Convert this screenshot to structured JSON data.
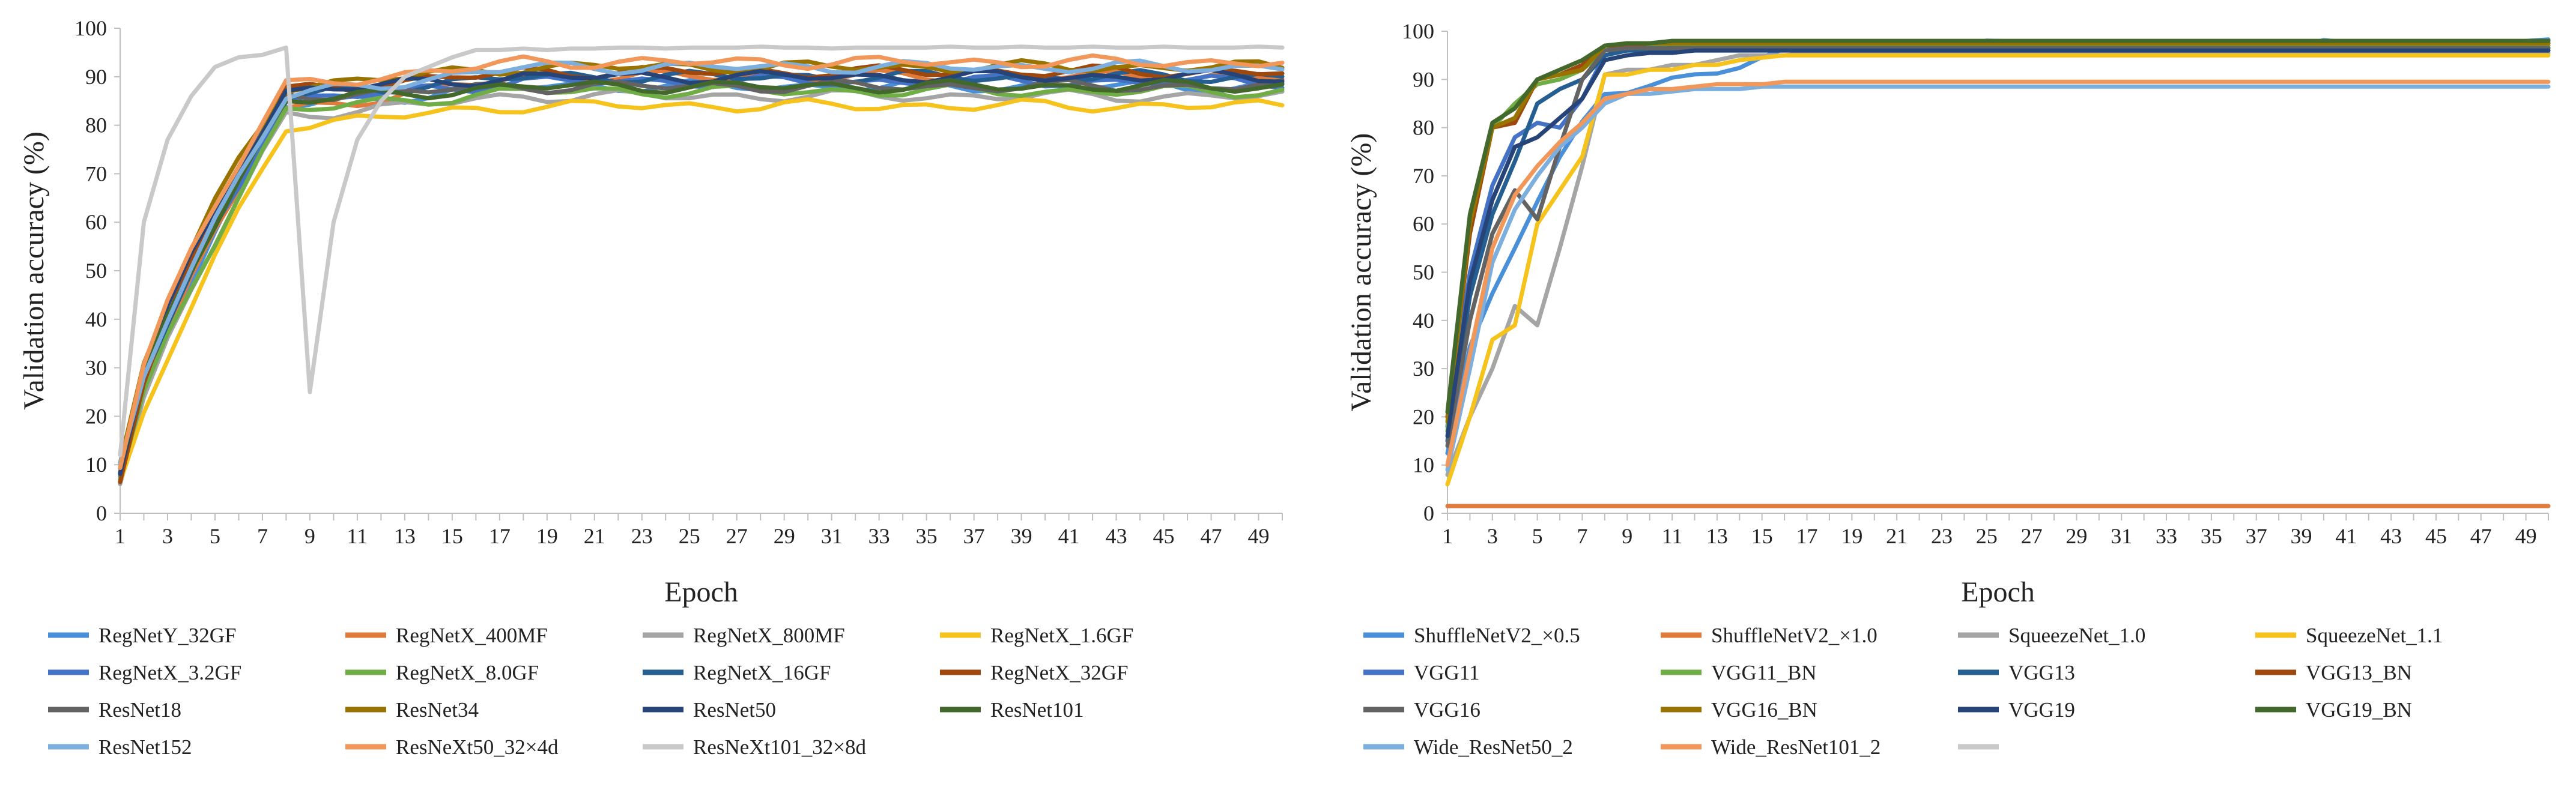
{
  "chart_data": [
    {
      "type": "line",
      "title": "",
      "xlabel": "Epoch",
      "ylabel": "Validation accuracy (%)",
      "ylim": [
        0,
        100
      ],
      "yticks": [
        0,
        10,
        20,
        30,
        40,
        50,
        60,
        70,
        80,
        90,
        100
      ],
      "xlim": [
        1,
        50
      ],
      "xtick_labels": [
        "1",
        "3",
        "5",
        "7",
        "9",
        "11",
        "13",
        "15",
        "17",
        "19",
        "21",
        "23",
        "25",
        "27",
        "29",
        "31",
        "33",
        "35",
        "37",
        "39",
        "41",
        "43",
        "45",
        "47",
        "49"
      ],
      "legend_position": "bottom",
      "series": [
        {
          "name": "RegNetY_32GF",
          "color": "#4a90d9",
          "start": 8,
          "mid": 84,
          "plateau": 88,
          "k": 1.35
        },
        {
          "name": "RegNetX_400MF",
          "color": "#e07b3c",
          "start": 7,
          "mid": 83,
          "plateau": 90,
          "k": 1.4
        },
        {
          "name": "RegNetX_800MF",
          "color": "#a5a5a5",
          "start": 7,
          "mid": 82,
          "plateau": 86,
          "k": 1.3
        },
        {
          "name": "RegNetX_1.6GF",
          "color": "#f6c21c",
          "start": 6,
          "mid": 80,
          "plateau": 84,
          "k": 1.2
        },
        {
          "name": "RegNetX_3.2GF",
          "color": "#4472c4",
          "start": 8,
          "mid": 85,
          "plateau": 89,
          "k": 1.35
        },
        {
          "name": "RegNetX_8.0GF",
          "color": "#70ad47",
          "start": 7,
          "mid": 83,
          "plateau": 87,
          "k": 1.3
        },
        {
          "name": "RegNetX_16GF",
          "color": "#255e91",
          "start": 8,
          "mid": 86,
          "plateau": 90,
          "k": 1.4
        },
        {
          "name": "RegNetX_32GF",
          "color": "#9e480e",
          "start": 7,
          "mid": 87,
          "plateau": 91,
          "k": 1.45
        },
        {
          "name": "ResNet18",
          "color": "#636363",
          "start": 9,
          "mid": 86,
          "plateau": 88,
          "k": 1.4
        },
        {
          "name": "ResNet34",
          "color": "#997300",
          "start": 10,
          "mid": 88,
          "plateau": 92,
          "k": 1.5
        },
        {
          "name": "ResNet50",
          "color": "#264478",
          "start": 9,
          "mid": 87,
          "plateau": 90,
          "k": 1.45
        },
        {
          "name": "ResNet101",
          "color": "#43682b",
          "start": 9,
          "mid": 85,
          "plateau": 88,
          "k": 1.4
        },
        {
          "name": "ResNet152",
          "color": "#7cafdd",
          "start": 9,
          "mid": 86,
          "plateau": 92,
          "k": 1.4
        },
        {
          "name": "ResNeXt50_32×4d",
          "color": "#f1975a",
          "start": 10,
          "mid": 88,
          "plateau": 93,
          "k": 1.5
        },
        {
          "name": "ResNeXt101_32×8d",
          "color": "#c9c9c9",
          "values": [
            12,
            60,
            77,
            86,
            92,
            94,
            94.5,
            96,
            25,
            60,
            77,
            85,
            90,
            92,
            94,
            95.5,
            95.5,
            95.8,
            95.5,
            95.8,
            95.8,
            96,
            96,
            95.8,
            96,
            96,
            96,
            96.2,
            96,
            96,
            95.8,
            96,
            96,
            96,
            96,
            96.2,
            96,
            96,
            96.2,
            96,
            96,
            96.2,
            96,
            96,
            96.2,
            96,
            96,
            96,
            96.2,
            96
          ]
        }
      ]
    },
    {
      "type": "line",
      "title": "",
      "xlabel": "Epoch",
      "ylabel": "Validation accuracy (%)",
      "ylim": [
        0,
        100
      ],
      "yticks": [
        0,
        10,
        20,
        30,
        40,
        50,
        60,
        70,
        80,
        90,
        100
      ],
      "xlim": [
        1,
        50
      ],
      "xtick_labels": [
        "1",
        "3",
        "5",
        "7",
        "9",
        "11",
        "13",
        "15",
        "17",
        "19",
        "21",
        "23",
        "25",
        "27",
        "29",
        "31",
        "33",
        "35",
        "37",
        "39",
        "41",
        "43",
        "45",
        "47",
        "49"
      ],
      "legend_position": "bottom",
      "series": [
        {
          "name": "ShuffleNetV2_×0.5",
          "color": "#4a90d9",
          "start": 12,
          "mid": 87,
          "plateau": 97,
          "k": 1.6
        },
        {
          "name": "ShuffleNetV2_×1.0",
          "color": "#e07b3c",
          "values": [
            1.5,
            1.5,
            1.5,
            1.5,
            1.5,
            1.5,
            1.5,
            1.5,
            1.5,
            1.5,
            1.5,
            1.5,
            1.5,
            1.5,
            1.5,
            1.5,
            1.5,
            1.5,
            1.5,
            1.5,
            1.5,
            1.5,
            1.5,
            1.5,
            1.5,
            1.5,
            1.5,
            1.5,
            1.5,
            1.5,
            1.5,
            1.5,
            1.5,
            1.5,
            1.5,
            1.5,
            1.5,
            1.5,
            1.5,
            1.5,
            1.5,
            1.5,
            1.5,
            1.5,
            1.5,
            1.5,
            1.5,
            1.5,
            1.5,
            1.5
          ]
        },
        {
          "name": "SqueezeNet_1.0",
          "color": "#a5a5a5",
          "values": [
            8,
            20,
            30,
            43,
            39,
            55,
            72,
            91,
            92,
            92,
            93,
            93,
            94,
            95,
            95,
            95,
            95.5,
            95.5,
            95.5,
            95.5,
            95.5,
            95.5,
            95.5,
            95.5,
            95.5,
            95.5,
            95.5,
            95.5,
            95.5,
            95.5,
            95.5,
            95.5,
            95.5,
            95.5,
            95.5,
            95.5,
            95.5,
            95.5,
            95.5,
            95.5,
            95.5,
            95.5,
            95.5,
            95.5,
            95.5,
            95.5,
            95.5,
            95.5,
            95.5,
            95.5
          ]
        },
        {
          "name": "SqueezeNet_1.1",
          "color": "#f6c21c",
          "values": [
            6,
            20,
            36,
            39,
            60,
            67,
            74,
            91,
            91,
            92,
            92,
            93,
            93,
            94,
            94.5,
            95,
            95,
            95,
            95,
            95,
            95,
            95,
            95,
            95,
            95,
            95,
            95,
            95,
            95,
            95,
            95,
            95,
            95,
            95,
            95,
            95,
            95,
            95,
            95,
            95,
            95,
            95,
            95,
            95,
            95,
            95,
            95,
            95,
            95,
            95
          ]
        },
        {
          "name": "VGG11",
          "color": "#4472c4",
          "values": [
            18,
            50,
            68,
            78,
            81,
            80,
            86,
            95,
            96,
            96,
            96,
            96.5,
            96.5,
            96.5,
            96.5,
            96.5,
            96.5,
            96.5,
            96.5,
            96.5,
            96.5,
            96.5,
            96.5,
            96.5,
            96.5,
            96.5,
            96.5,
            96.5,
            96.5,
            96.5,
            96.5,
            96.5,
            96.5,
            96.5,
            96.5,
            96.5,
            96.5,
            96.5,
            96.5,
            96.5,
            96.5,
            96.5,
            96.5,
            96.5,
            96.5,
            96.5,
            96.5,
            96.5,
            96.5,
            96.5
          ]
        },
        {
          "name": "VGG11_BN",
          "color": "#70ad47",
          "values": [
            17,
            60,
            80,
            85,
            89,
            90,
            92,
            96,
            97,
            97,
            97,
            97,
            97,
            97,
            97,
            97,
            97,
            97,
            97,
            97,
            97,
            97,
            97,
            97,
            97,
            97,
            97,
            97,
            97,
            97,
            97,
            97,
            97,
            97,
            97,
            97,
            97,
            97,
            97,
            97,
            97,
            97,
            97,
            97,
            97,
            97,
            97,
            97,
            97,
            97
          ]
        },
        {
          "name": "VGG13",
          "color": "#255e91",
          "values": [
            15,
            45,
            62,
            73,
            85,
            88,
            90,
            95,
            96,
            96,
            96,
            96.5,
            96.5,
            96.5,
            96.5,
            96.5,
            96.5,
            96.5,
            96.5,
            96.5,
            96.5,
            96.5,
            96.5,
            96.5,
            96.5,
            96.5,
            96.5,
            96.5,
            96.5,
            96.5,
            96.5,
            96.5,
            96.5,
            96.5,
            96.5,
            96.5,
            96.5,
            96.5,
            96.5,
            96.5,
            96.5,
            96.5,
            96.5,
            96.5,
            96.5,
            96.5,
            96.5,
            96.5,
            96.5,
            96.5
          ]
        },
        {
          "name": "VGG13_BN",
          "color": "#9e480e",
          "values": [
            20,
            58,
            80,
            81,
            90,
            91,
            93,
            97,
            97,
            97.5,
            97.5,
            97.5,
            97.5,
            97.5,
            97.5,
            97.5,
            97.5,
            97.5,
            97.5,
            97.5,
            97.5,
            97.5,
            97.5,
            97.5,
            97.5,
            97.5,
            97.5,
            97.5,
            97.5,
            97.5,
            97.5,
            97.5,
            97.5,
            97.5,
            97.5,
            97.5,
            97.5,
            97.5,
            97.5,
            97.5,
            97.5,
            97.5,
            97.5,
            97.5,
            97.5,
            97.5,
            97.5,
            97.5,
            97.5,
            97.5
          ]
        },
        {
          "name": "VGG16",
          "color": "#636363",
          "values": [
            14,
            40,
            58,
            67,
            61,
            76,
            90,
            96,
            96.5,
            96.5,
            96.5,
            96.5,
            96.5,
            96.5,
            96.5,
            96.5,
            96.5,
            96.5,
            96.5,
            96.5,
            96.5,
            96.5,
            96.5,
            96.5,
            96.5,
            96.5,
            96.5,
            96.5,
            96.5,
            96.5,
            96.5,
            96.5,
            96.5,
            96.5,
            96.5,
            96.5,
            96.5,
            96.5,
            96.5,
            96.5,
            96.5,
            96.5,
            96.5,
            96.5,
            96.5,
            96.5,
            96.5,
            96.5,
            96.5,
            96.5
          ]
        },
        {
          "name": "VGG16_BN",
          "color": "#997300",
          "values": [
            19,
            60,
            80,
            82,
            90,
            91,
            92,
            97,
            97.5,
            97.5,
            97.5,
            97.5,
            97.5,
            97.5,
            97.5,
            97.5,
            97.5,
            97.5,
            97.5,
            97.5,
            97.5,
            97.5,
            97.5,
            97.5,
            97.5,
            97.5,
            97.5,
            97.5,
            97.5,
            97.5,
            97.5,
            97.5,
            97.5,
            97.5,
            97.5,
            97.5,
            97.5,
            97.5,
            97.5,
            97.5,
            97.5,
            97.5,
            97.5,
            97.5,
            97.5,
            97.5,
            97.5,
            97.5,
            97.5,
            97.5
          ]
        },
        {
          "name": "VGG19",
          "color": "#264478",
          "values": [
            16,
            48,
            65,
            76,
            78,
            82,
            86,
            94,
            95,
            95.5,
            95.5,
            96,
            96,
            96,
            96,
            96,
            96,
            96,
            96,
            96,
            96,
            96,
            96,
            96,
            96,
            96,
            96,
            96,
            96,
            96,
            96,
            96,
            96,
            96,
            96,
            96,
            96,
            96,
            96,
            96,
            96,
            96,
            96,
            96,
            96,
            96,
            96,
            96,
            96,
            96
          ]
        },
        {
          "name": "VGG19_BN",
          "color": "#43682b",
          "values": [
            21,
            62,
            81,
            84,
            90,
            92,
            94,
            97,
            97.5,
            97.5,
            98,
            98,
            98,
            98,
            98,
            98,
            98,
            98,
            98,
            98,
            98,
            98,
            98,
            98,
            98,
            98,
            98,
            98,
            98,
            98,
            98,
            98,
            98,
            98,
            98,
            98,
            98,
            98,
            98,
            98,
            98,
            98,
            98,
            98,
            98,
            98,
            98,
            98,
            98,
            98
          ]
        },
        {
          "name": "Wide_ResNet50_2",
          "color": "#7cafdd",
          "values": [
            9,
            30,
            52,
            63,
            70,
            76,
            80,
            85,
            87,
            87,
            87.5,
            88,
            88,
            88,
            88.5,
            88.5,
            88.5,
            88.5,
            88.5,
            88.5,
            88.5,
            88.5,
            88.5,
            88.5,
            88.5,
            88.5,
            88.5,
            88.5,
            88.5,
            88.5,
            88.5,
            88.5,
            88.5,
            88.5,
            88.5,
            88.5,
            88.5,
            88.5,
            88.5,
            88.5,
            88.5,
            88.5,
            88.5,
            88.5,
            88.5,
            88.5,
            88.5,
            88.5,
            88.5,
            88.5
          ]
        },
        {
          "name": "Wide_ResNet101_2",
          "color": "#f1975a",
          "values": [
            10,
            33,
            55,
            66,
            72,
            77,
            81,
            86,
            87,
            88,
            88,
            88.5,
            89,
            89,
            89,
            89.5,
            89.5,
            89.5,
            89.5,
            89.5,
            89.5,
            89.5,
            89.5,
            89.5,
            89.5,
            89.5,
            89.5,
            89.5,
            89.5,
            89.5,
            89.5,
            89.5,
            89.5,
            89.5,
            89.5,
            89.5,
            89.5,
            89.5,
            89.5,
            89.5,
            89.5,
            89.5,
            89.5,
            89.5,
            89.5,
            89.5,
            89.5,
            89.5,
            89.5,
            89.5
          ]
        },
        {
          "name": "",
          "color": "#c9c9c9",
          "values": []
        }
      ]
    }
  ]
}
